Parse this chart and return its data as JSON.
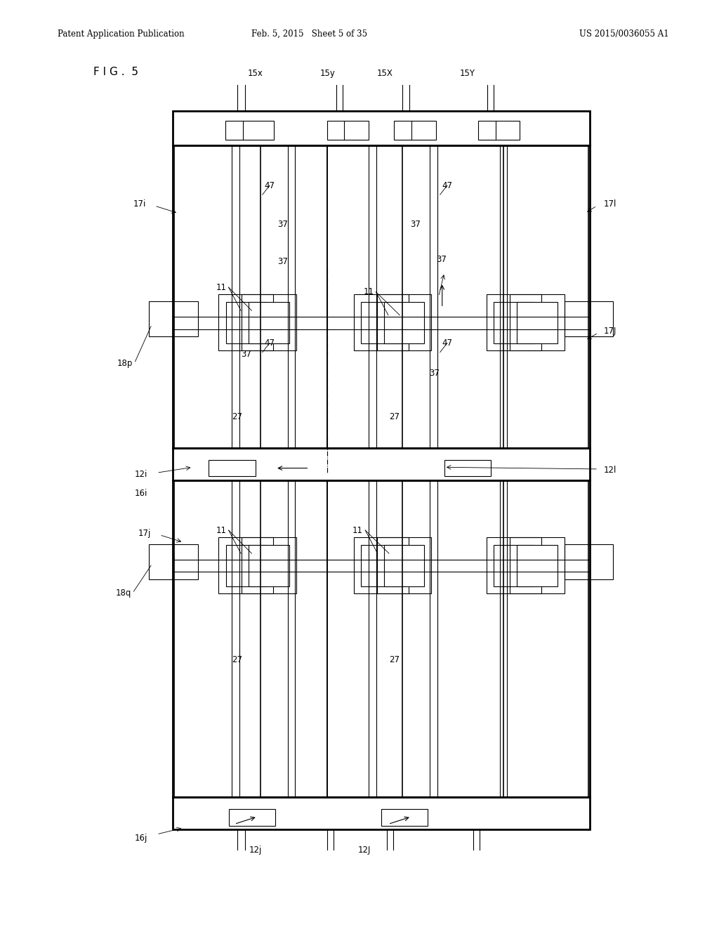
{
  "header_left": "Patent Application Publication",
  "header_mid": "Feb. 5, 2015   Sheet 5 of 35",
  "header_right": "US 2015/0036055 A1",
  "fig_label": "F I G .  5",
  "bg_color": "#ffffff",
  "line_color": "#000000",
  "lw_thin": 0.8,
  "lw_med": 1.2,
  "lw_thick": 2.0,
  "fs_header": 8.5,
  "fs_label": 8.5,
  "fs_fig": 11
}
